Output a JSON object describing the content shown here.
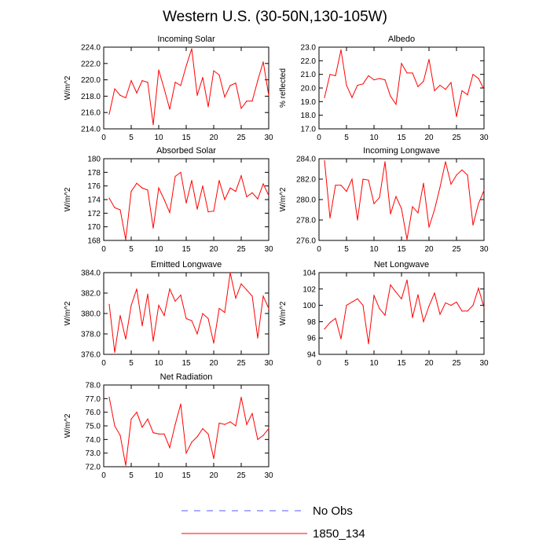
{
  "title": "Western U.S. (30-50N,130-105W)",
  "colors": {
    "model": "#ff0000",
    "obs": "#5a5aff",
    "frame": "#000000"
  },
  "legend": [
    {
      "label": "No Obs",
      "style": "dashed",
      "color": "#5a5aff"
    },
    {
      "label": "1850_134",
      "style": "solid",
      "color": "#ff0000"
    }
  ],
  "chart_data": [
    {
      "type": "line",
      "title": "Incoming Solar",
      "ylabel": "W/m^2",
      "xlim": [
        0,
        30
      ],
      "ylim": [
        214,
        224
      ],
      "xticks": [
        0,
        5,
        10,
        15,
        20,
        25,
        30
      ],
      "yticks": [
        "214.0",
        "216.0",
        "218.0",
        "220.0",
        "222.0",
        "224.0"
      ],
      "series": [
        {
          "name": "1850_134",
          "x": [
            1,
            2,
            3,
            4,
            5,
            6,
            7,
            8,
            9,
            10,
            11,
            12,
            13,
            14,
            15,
            16,
            17,
            18,
            19,
            20,
            21,
            22,
            23,
            24,
            25,
            26,
            27,
            28,
            29,
            30
          ],
          "values": [
            215.8,
            218.9,
            218.1,
            217.8,
            219.9,
            218.4,
            219.9,
            219.7,
            214.5,
            221.2,
            218.9,
            216.4,
            219.7,
            219.3,
            221.7,
            223.8,
            218.1,
            220.3,
            216.7,
            221.1,
            220.6,
            217.9,
            219.3,
            219.6,
            216.5,
            217.4,
            217.4,
            219.9,
            222.2,
            218.1
          ]
        }
      ]
    },
    {
      "type": "line",
      "title": "Albedo",
      "ylabel": "% reflected",
      "xlim": [
        0,
        30
      ],
      "ylim": [
        17,
        23
      ],
      "xticks": [
        0,
        5,
        10,
        15,
        20,
        25,
        30
      ],
      "yticks": [
        "17.0",
        "18.0",
        "19.0",
        "20.0",
        "21.0",
        "22.0",
        "23.0"
      ],
      "series": [
        {
          "name": "1850_134",
          "x": [
            1,
            2,
            3,
            4,
            5,
            6,
            7,
            8,
            9,
            10,
            11,
            12,
            13,
            14,
            15,
            16,
            17,
            18,
            19,
            20,
            21,
            22,
            23,
            24,
            25,
            26,
            27,
            28,
            29,
            30
          ],
          "values": [
            19.3,
            21.0,
            20.9,
            22.8,
            20.2,
            19.3,
            20.2,
            20.3,
            20.9,
            20.6,
            20.7,
            20.6,
            19.4,
            18.8,
            21.8,
            21.1,
            21.1,
            20.1,
            20.5,
            22.1,
            19.8,
            20.2,
            19.9,
            20.4,
            17.9,
            19.8,
            19.5,
            21.0,
            20.7,
            19.9
          ]
        }
      ]
    },
    {
      "type": "line",
      "title": "Absorbed Solar",
      "ylabel": "W/m^2",
      "xlim": [
        0,
        30
      ],
      "ylim": [
        168,
        180
      ],
      "xticks": [
        0,
        5,
        10,
        15,
        20,
        25,
        30
      ],
      "yticks": [
        "168",
        "170",
        "172",
        "174",
        "176",
        "178",
        "180"
      ],
      "series": [
        {
          "name": "1850_134",
          "x": [
            1,
            2,
            3,
            4,
            5,
            6,
            7,
            8,
            9,
            10,
            11,
            12,
            13,
            14,
            15,
            16,
            17,
            18,
            19,
            20,
            21,
            22,
            23,
            24,
            25,
            26,
            27,
            28,
            29,
            30
          ],
          "values": [
            174.2,
            172.8,
            172.5,
            168.1,
            175.2,
            176.4,
            175.7,
            175.4,
            169.8,
            175.7,
            174.0,
            172.1,
            177.4,
            178.0,
            173.5,
            176.8,
            172.6,
            176.0,
            172.2,
            172.3,
            176.8,
            174.0,
            175.7,
            175.2,
            177.5,
            174.4,
            175.0,
            174.1,
            176.3,
            174.6
          ]
        }
      ]
    },
    {
      "type": "line",
      "title": "Incoming Longwave",
      "ylabel": "W/m^2",
      "xlim": [
        0,
        30
      ],
      "ylim": [
        276,
        284
      ],
      "xticks": [
        0,
        5,
        10,
        15,
        20,
        25,
        30
      ],
      "yticks": [
        "276.0",
        "278.0",
        "280.0",
        "282.0",
        "284.0"
      ],
      "series": [
        {
          "name": "1850_134",
          "x": [
            1,
            2,
            3,
            4,
            5,
            6,
            7,
            8,
            9,
            10,
            11,
            12,
            13,
            14,
            15,
            16,
            17,
            18,
            19,
            20,
            21,
            22,
            23,
            24,
            25,
            26,
            27,
            28,
            29,
            30
          ],
          "values": [
            283.8,
            278.2,
            281.4,
            281.4,
            280.8,
            282.0,
            278.0,
            282.0,
            281.9,
            279.6,
            280.2,
            283.7,
            278.6,
            280.3,
            279.1,
            276.1,
            279.3,
            278.7,
            281.6,
            277.3,
            279.0,
            281.2,
            283.7,
            281.5,
            282.4,
            282.9,
            282.4,
            277.5,
            279.6,
            280.9
          ]
        }
      ]
    },
    {
      "type": "line",
      "title": "Emitted Longwave",
      "ylabel": "W/m^2",
      "xlim": [
        0,
        30
      ],
      "ylim": [
        376,
        384
      ],
      "xticks": [
        0,
        5,
        10,
        15,
        20,
        25,
        30
      ],
      "yticks": [
        "376.0",
        "378.0",
        "380.0",
        "382.0",
        "384.0"
      ],
      "series": [
        {
          "name": "1850_134",
          "x": [
            1,
            2,
            3,
            4,
            5,
            6,
            7,
            8,
            9,
            10,
            11,
            12,
            13,
            14,
            15,
            16,
            17,
            18,
            19,
            20,
            21,
            22,
            23,
            24,
            25,
            26,
            27,
            28,
            29,
            30
          ],
          "values": [
            380.9,
            376.2,
            379.8,
            377.5,
            380.8,
            382.4,
            378.8,
            381.9,
            377.3,
            380.8,
            379.8,
            382.4,
            381.2,
            381.8,
            379.5,
            379.3,
            378.0,
            380.0,
            379.5,
            377.1,
            380.5,
            380.1,
            384.0,
            381.5,
            382.9,
            382.3,
            381.7,
            377.6,
            381.7,
            380.5
          ]
        }
      ]
    },
    {
      "type": "line",
      "title": "Net Longwave",
      "ylabel": "W/m^2",
      "xlim": [
        0,
        30
      ],
      "ylim": [
        94,
        104
      ],
      "xticks": [
        0,
        5,
        10,
        15,
        20,
        25,
        30
      ],
      "yticks": [
        "94",
        "96",
        "98",
        "100",
        "102",
        "104"
      ],
      "series": [
        {
          "name": "1850_134",
          "x": [
            1,
            2,
            3,
            4,
            5,
            6,
            7,
            8,
            9,
            10,
            11,
            12,
            13,
            14,
            15,
            16,
            17,
            18,
            19,
            20,
            21,
            22,
            23,
            24,
            25,
            26,
            27,
            28,
            29,
            30
          ],
          "values": [
            97.1,
            97.9,
            98.4,
            95.9,
            100.0,
            100.4,
            100.8,
            100.0,
            95.3,
            101.2,
            99.6,
            98.8,
            102.5,
            101.6,
            100.8,
            103.1,
            98.5,
            101.3,
            98.0,
            99.9,
            101.5,
            98.9,
            100.3,
            100.0,
            100.4,
            99.3,
            99.3,
            100.0,
            102.1,
            99.7
          ]
        }
      ]
    },
    {
      "type": "line",
      "title": "Net Radiation",
      "ylabel": "W/m^2",
      "xlim": [
        0,
        30
      ],
      "ylim": [
        72,
        78
      ],
      "xticks": [
        0,
        5,
        10,
        15,
        20,
        25,
        30
      ],
      "yticks": [
        "72.0",
        "73.0",
        "74.0",
        "75.0",
        "76.0",
        "77.0",
        "78.0"
      ],
      "series": [
        {
          "name": "1850_134",
          "x": [
            1,
            2,
            3,
            4,
            5,
            6,
            7,
            8,
            9,
            10,
            11,
            12,
            13,
            14,
            15,
            16,
            17,
            18,
            19,
            20,
            21,
            22,
            23,
            24,
            25,
            26,
            27,
            28,
            29,
            30
          ],
          "values": [
            77.1,
            75.0,
            74.3,
            72.1,
            75.5,
            76.0,
            74.9,
            75.5,
            74.5,
            74.4,
            74.4,
            73.4,
            75.1,
            76.6,
            73.0,
            73.8,
            74.2,
            74.8,
            74.4,
            72.6,
            75.2,
            75.1,
            75.3,
            75.0,
            77.1,
            75.1,
            75.9,
            74.0,
            74.3,
            74.8
          ]
        }
      ]
    }
  ]
}
